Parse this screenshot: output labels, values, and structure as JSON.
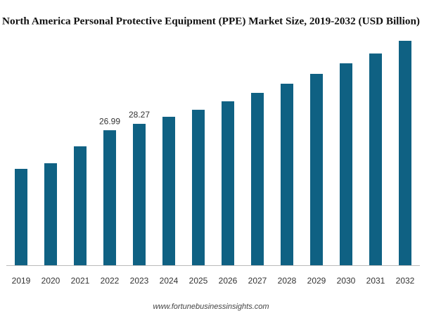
{
  "chart_data": {
    "type": "bar",
    "title": "North America Personal Protective Equipment (PPE) Market Size, 2019-2032 (USD Billion)",
    "categories": [
      "2019",
      "2020",
      "2021",
      "2022",
      "2023",
      "2024",
      "2025",
      "2026",
      "2027",
      "2028",
      "2029",
      "2030",
      "2031",
      "2032"
    ],
    "values": [
      19.27,
      20.39,
      23.77,
      26.99,
      28.27,
      29.68,
      31.08,
      32.77,
      34.46,
      36.29,
      38.26,
      40.37,
      42.33,
      44.87
    ],
    "value_labels": [
      null,
      null,
      null,
      "26.99",
      "28.27",
      null,
      null,
      null,
      null,
      null,
      null,
      null,
      null,
      null
    ],
    "color": "#0f6183",
    "source": "www.fortunebusinessinsights.com"
  }
}
